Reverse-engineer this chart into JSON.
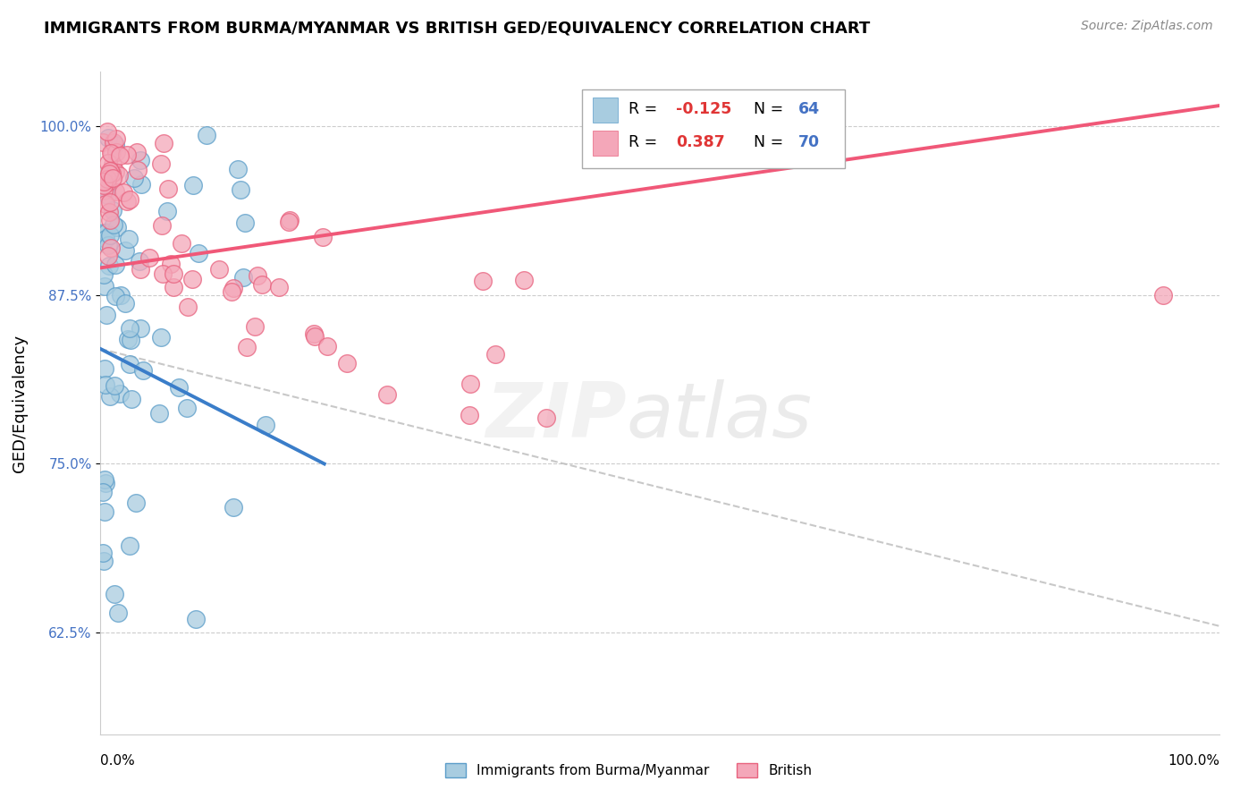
{
  "title": "IMMIGRANTS FROM BURMA/MYANMAR VS BRITISH GED/EQUIVALENCY CORRELATION CHART",
  "source": "Source: ZipAtlas.com",
  "ylabel": "GED/Equivalency",
  "yticks": [
    62.5,
    75.0,
    87.5,
    100.0
  ],
  "ytick_labels": [
    "62.5%",
    "75.0%",
    "87.5%",
    "100.0%"
  ],
  "xlim": [
    0.0,
    100.0
  ],
  "ylim": [
    55.0,
    104.0
  ],
  "legend_label1": "Immigrants from Burma/Myanmar",
  "legend_label2": "British",
  "r1_val": "-0.125",
  "n1_val": "64",
  "r2_val": "0.387",
  "n2_val": "70",
  "color_blue": "#a8cce0",
  "color_blue_edge": "#5b9dc9",
  "color_pink": "#f4a7b9",
  "color_pink_edge": "#e8627e",
  "color_blue_line": "#3a7dc9",
  "color_pink_line": "#f05878",
  "color_dashed": "#bbbbbb",
  "blue_trend_x0": 0.0,
  "blue_trend_y0": 83.5,
  "blue_trend_x1": 20.0,
  "blue_trend_y1": 75.0,
  "pink_trend_x0": 0.0,
  "pink_trend_y0": 89.5,
  "pink_trend_x1": 100.0,
  "pink_trend_y1": 101.5,
  "dash_x0": 0.0,
  "dash_y0": 83.5,
  "dash_x1": 100.0,
  "dash_y1": 63.0
}
